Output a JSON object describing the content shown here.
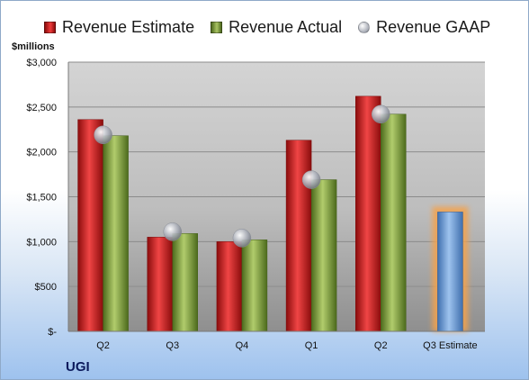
{
  "legend": {
    "estimate": "Revenue Estimate",
    "actual": "Revenue Actual",
    "gaap": "Revenue GAAP"
  },
  "unit_label": "$millions",
  "company": "UGI",
  "colors": {
    "estimate": "#c81f1f",
    "actual": "#8aa84a",
    "gaap": "#b8bcc6",
    "current_estimate": "#6f9ed6",
    "highlight": "#f4a24c"
  },
  "chart_data": {
    "type": "bar",
    "categories": [
      "Q2",
      "Q3",
      "Q4",
      "Q1",
      "Q2",
      "Q3 Estimate"
    ],
    "series": [
      {
        "name": "Revenue Estimate",
        "values": [
          2360,
          1050,
          1000,
          2130,
          2620,
          1330
        ]
      },
      {
        "name": "Revenue Actual",
        "values": [
          2180,
          1090,
          1020,
          1690,
          2420,
          null
        ]
      },
      {
        "name": "Revenue GAAP",
        "values": [
          2190,
          1110,
          1040,
          1690,
          2420,
          null
        ]
      }
    ],
    "ylabel": "$millions",
    "ylim": [
      0,
      3000
    ],
    "yticks": [
      0,
      500,
      1000,
      1500,
      2000,
      2500,
      3000
    ],
    "ytick_labels": [
      "$-",
      "$500",
      "$1,000",
      "$1,500",
      "$2,000",
      "$2,500",
      "$3,000"
    ],
    "grid": true,
    "legend_position": "top"
  }
}
